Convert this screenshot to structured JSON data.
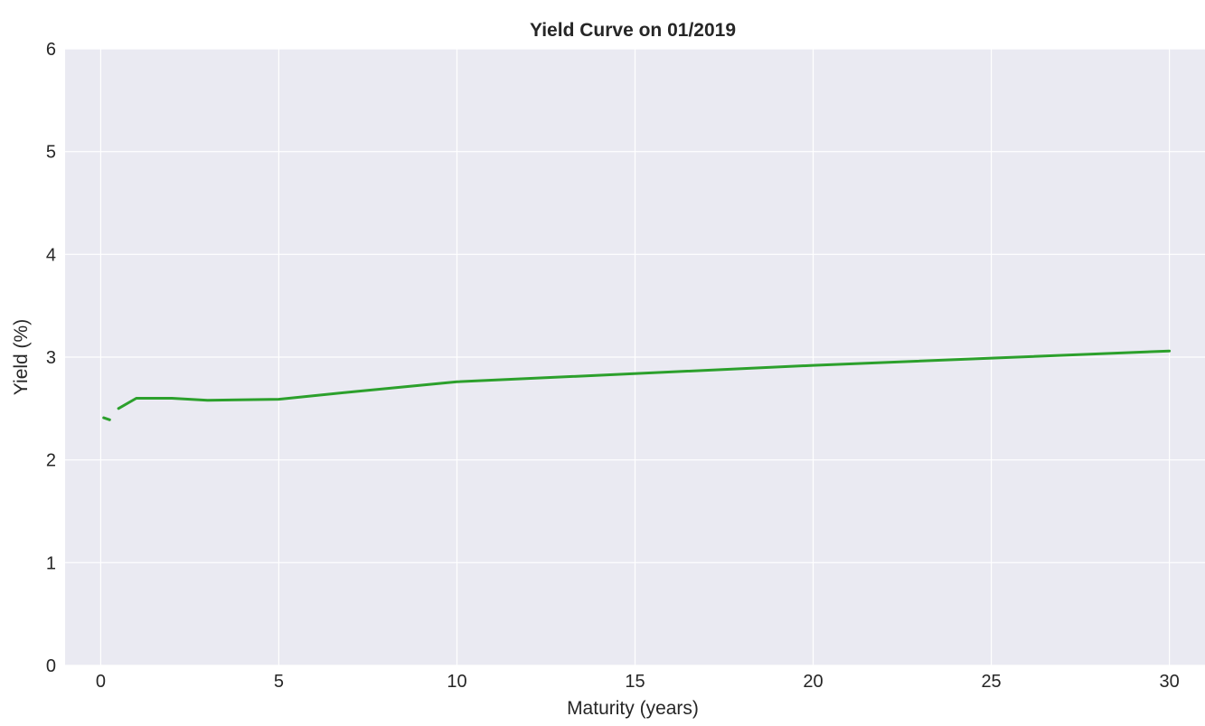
{
  "chart_data": {
    "type": "line",
    "title": "Yield Curve on 01/2019",
    "xlabel": "Maturity (years)",
    "ylabel": "Yield (%)",
    "xlim": [
      -1.0,
      31.0
    ],
    "ylim": [
      0,
      6
    ],
    "xticks": [
      0,
      5,
      10,
      15,
      20,
      25,
      30
    ],
    "yticks": [
      0,
      1,
      2,
      3,
      4,
      5,
      6
    ],
    "grid": true,
    "background_color": "#eaeaf2",
    "grid_color": "#ffffff",
    "line_color": "#2ca02c",
    "segments": [
      {
        "x": [
          0.083,
          0.25
        ],
        "y": [
          2.41,
          2.39
        ]
      },
      {
        "x": [
          0.5,
          1,
          2,
          3,
          5,
          7,
          10,
          20,
          30
        ],
        "y": [
          2.5,
          2.6,
          2.6,
          2.58,
          2.59,
          2.66,
          2.76,
          2.92,
          3.06
        ]
      }
    ]
  }
}
